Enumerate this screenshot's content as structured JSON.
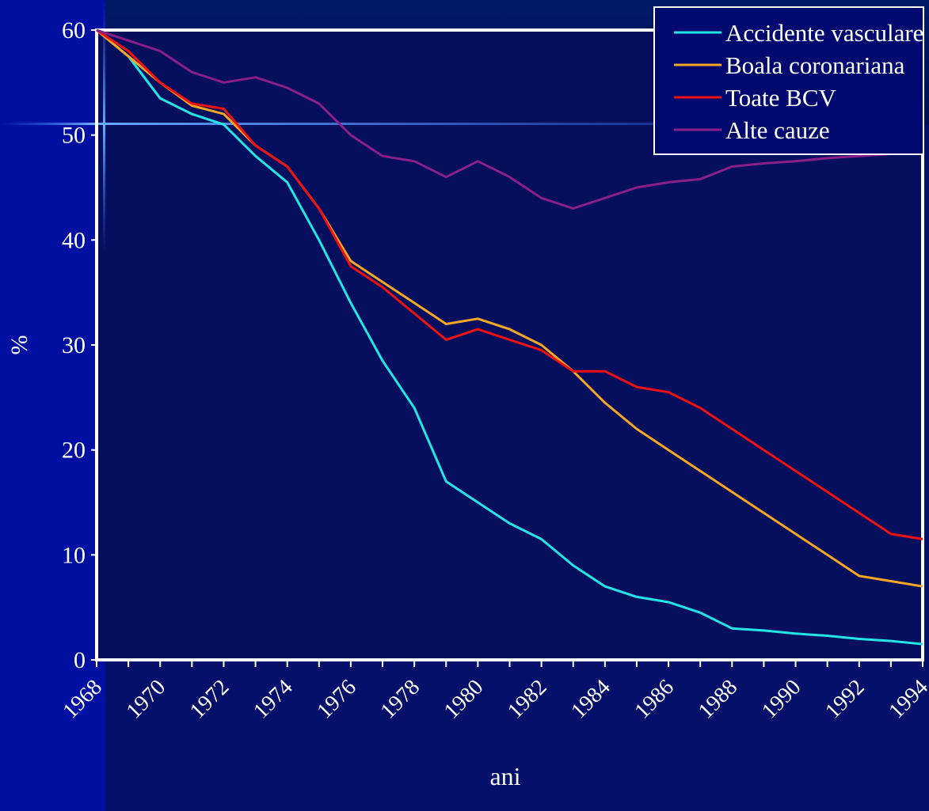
{
  "chart_data": {
    "type": "line",
    "title": "",
    "xlabel": "ani",
    "ylabel": "%",
    "ylim": [
      0,
      60
    ],
    "yticks": [
      0,
      10,
      20,
      30,
      40,
      50,
      60
    ],
    "xlim": [
      1968,
      1994
    ],
    "xticks": [
      "1968",
      "1970",
      "1972",
      "1974",
      "1976",
      "1978",
      "1980",
      "1982",
      "1984",
      "1986",
      "1988",
      "1990",
      "1992",
      "1994"
    ],
    "legend_position": "top-right",
    "grid": false,
    "series": [
      {
        "name": "Accidente vasculare",
        "color": "#22e6e6",
        "x": [
          1968,
          1969,
          1970,
          1971,
          1972,
          1973,
          1974,
          1975,
          1976,
          1977,
          1978,
          1979,
          1980,
          1981,
          1982,
          1983,
          1984,
          1985,
          1986,
          1987,
          1988,
          1989,
          1990,
          1991,
          1992,
          1993,
          1994
        ],
        "values": [
          60,
          57.5,
          53.5,
          52,
          51,
          48,
          45.5,
          40,
          34,
          28.5,
          24,
          17,
          15,
          13,
          11.5,
          9,
          7,
          6,
          5.5,
          4.5,
          3,
          2.8,
          2.5,
          2.3,
          2,
          1.8,
          1.5
        ]
      },
      {
        "name": "Boala coronariana",
        "color": "#f5a623",
        "x": [
          1968,
          1969,
          1970,
          1971,
          1972,
          1973,
          1974,
          1975,
          1976,
          1977,
          1978,
          1979,
          1980,
          1981,
          1982,
          1983,
          1984,
          1985,
          1986,
          1987,
          1988,
          1989,
          1990,
          1991,
          1992,
          1993,
          1994
        ],
        "values": [
          60,
          57.5,
          55,
          52.8,
          52,
          49,
          47,
          43,
          38,
          36,
          34,
          32,
          32.5,
          31.5,
          30,
          27.5,
          24.5,
          22,
          20,
          18,
          16,
          14,
          12,
          10,
          8,
          7.5,
          7
        ]
      },
      {
        "name": "Toate BCV",
        "color": "#ee1111",
        "x": [
          1968,
          1969,
          1970,
          1971,
          1972,
          1973,
          1974,
          1975,
          1976,
          1977,
          1978,
          1979,
          1980,
          1981,
          1982,
          1983,
          1984,
          1985,
          1986,
          1987,
          1988,
          1989,
          1990,
          1991,
          1992,
          1993,
          1994
        ],
        "values": [
          60,
          58,
          55,
          53,
          52.5,
          49,
          47,
          43,
          37.5,
          35.5,
          33,
          30.5,
          31.5,
          30.5,
          29.5,
          27.5,
          27.5,
          26,
          25.5,
          24,
          22,
          20,
          18,
          16,
          14,
          12,
          11.5
        ]
      },
      {
        "name": "Alte cauze",
        "color": "#8a1f8a",
        "x": [
          1968,
          1969,
          1970,
          1971,
          1972,
          1973,
          1974,
          1975,
          1976,
          1977,
          1978,
          1979,
          1980,
          1981,
          1982,
          1983,
          1984,
          1985,
          1986,
          1987,
          1988,
          1989,
          1990,
          1991,
          1992,
          1993,
          1994
        ],
        "values": [
          60,
          59,
          58,
          56,
          55,
          55.5,
          54.5,
          53,
          50,
          48,
          47.5,
          46,
          47.5,
          46,
          44,
          43,
          44,
          45,
          45.5,
          45.8,
          47,
          47.3,
          47.5,
          47.8,
          48,
          48.2,
          48.5
        ]
      }
    ]
  }
}
